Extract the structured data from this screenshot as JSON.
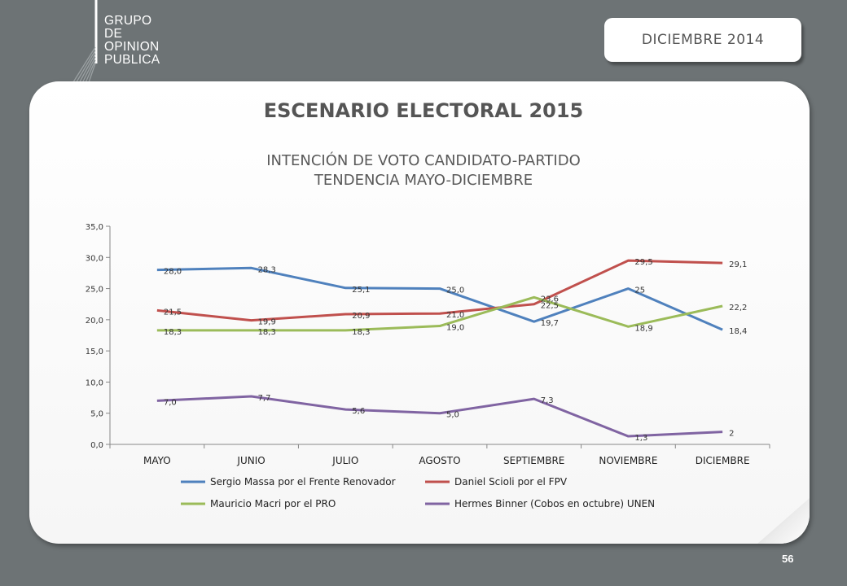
{
  "logo": {
    "lines": [
      "GRUPO",
      "DE",
      "OPINION",
      "PUBLICA"
    ]
  },
  "header": {
    "date_badge": "DICIEMBRE  2014"
  },
  "slide": {
    "title": "ESCENARIO ELECTORAL 2015",
    "subtitle_line1": "INTENCIÓN DE VOTO CANDIDATO-PARTIDO",
    "subtitle_line2": "TENDENCIA MAYO-DICIEMBRE",
    "page_number": "56"
  },
  "chart_data": {
    "type": "line",
    "categories": [
      "MAYO",
      "JUNIO",
      "JULIO",
      "AGOSTO",
      "SEPTIEMBRE",
      "NOVIEMBRE",
      "DICIEMBRE"
    ],
    "ylim": [
      0,
      35
    ],
    "yticks": [
      "0,0",
      "5,0",
      "10,0",
      "15,0",
      "20,0",
      "25,0",
      "30,0",
      "35,0"
    ],
    "grid": false,
    "legend_position": "bottom",
    "series": [
      {
        "name": "Sergio Massa por el Frente Renovador",
        "color": "#4f81bd",
        "values": [
          28.0,
          28.3,
          25.1,
          25.0,
          19.7,
          25,
          18.4
        ],
        "labels": [
          "28,0",
          "28,3",
          "25,1",
          "25,0",
          "19,7",
          "25",
          "18,4"
        ]
      },
      {
        "name": "Daniel Scioli por el FPV",
        "color": "#c0504d",
        "values": [
          21.5,
          19.9,
          20.9,
          21.0,
          22.5,
          29.5,
          29.1
        ],
        "labels": [
          "21,5",
          "19,9",
          "20,9",
          "21,0",
          "22,5",
          "29,5",
          "29,1"
        ]
      },
      {
        "name": "Mauricio Macri por el PRO",
        "color": "#9bbb59",
        "values": [
          18.3,
          18.3,
          18.3,
          19.0,
          23.6,
          18.9,
          22.2
        ],
        "labels": [
          "18,3",
          "18,3",
          "18,3",
          "19,0",
          "23,6",
          "18,9",
          "22,2"
        ]
      },
      {
        "name": "Hermes Binner (Cobos en octubre) UNEN",
        "color": "#8064a2",
        "values": [
          7.0,
          7.7,
          5.6,
          5.0,
          7.3,
          1.3,
          2
        ],
        "labels": [
          "7,0",
          "7,7",
          "5,6",
          "5,0",
          "7,3",
          "1,3",
          "2"
        ]
      }
    ]
  }
}
